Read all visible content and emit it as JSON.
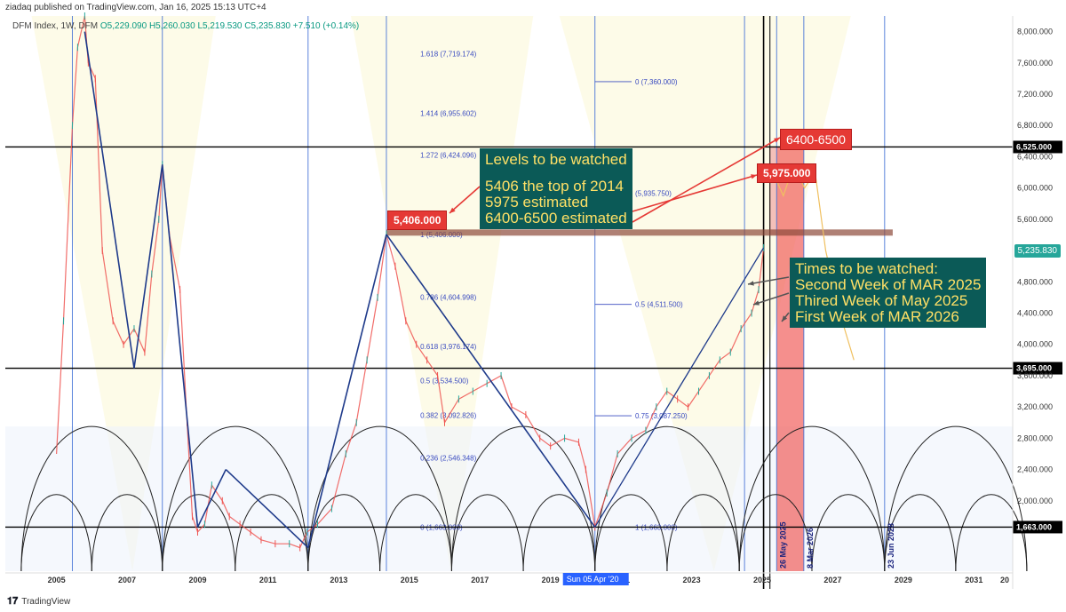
{
  "header": {
    "published": "ziadaq published on TradingView.com, Jan 16, 2025 15:13 UTC+4",
    "symbol": "DFM Index, 1W, DFM",
    "ohlc": "O5,229.090  H5,260.030  L5,219.530  C5,235.830  +7.510 (+0.14%)"
  },
  "footer": {
    "brand": "TradingView"
  },
  "callouts": {
    "levels": [
      "Levels to be watched",
      "",
      "5406 the top of 2014",
      "5975 estimated",
      "6400-6500 estimated"
    ],
    "times": [
      "Times to be watched:",
      "Second Week of MAR 2025",
      "Thired Week of May 2025",
      "First Week of MAR 2026"
    ]
  },
  "labels": {
    "top2014": "5,406.000",
    "estimated": "5,975.000",
    "target": "6400-6500",
    "current_price": "5,235.830",
    "x_marker": "Sun 05 Apr '20",
    "date_may25": "26 May 2025",
    "date_mar26": "8 Mar 2026",
    "date_jun28": "23 Jun 2028"
  },
  "colors": {
    "up": "#26a69a",
    "down": "#ef5350",
    "trend": "#1e3a8a",
    "fib": "#3b4cc0",
    "callout_bg": "#0b5a57",
    "callout_text": "#ffe066",
    "red": "#e53935"
  },
  "chart_data": {
    "type": "line",
    "x_unit": "year",
    "ylim": [
      1100,
      8200
    ],
    "xlim": [
      2003.55,
      2032.1
    ],
    "x_ticks": [
      "2005",
      "2007",
      "2009",
      "2011",
      "2013",
      "2015",
      "2017",
      "2019",
      "2021",
      "2023",
      "2025",
      "2027",
      "2029",
      "2031",
      "20"
    ],
    "y_ticks": [
      "8,000.000",
      "7,600.000",
      "7,200.000",
      "6,800.000",
      "6,400.000",
      "6,000.000",
      "5,600.000",
      "4,800.000",
      "4,400.000",
      "4,000.000",
      "3,600.000",
      "3,200.000",
      "2,800.000",
      "2,400.000",
      "2,000.000"
    ],
    "horizontal_levels": [
      {
        "value": 6525,
        "label": "6,525.000"
      },
      {
        "value": 3695,
        "label": "3,695.000"
      },
      {
        "value": 1663,
        "label": "1,663.000"
      }
    ],
    "series": [
      {
        "name": "DFM Index",
        "x": [
          2005.0,
          2005.2,
          2005.45,
          2005.6,
          2005.8,
          2005.9,
          2006.1,
          2006.3,
          2006.6,
          2006.9,
          2007.2,
          2007.5,
          2007.7,
          2007.9,
          2008.0,
          2008.2,
          2008.5,
          2008.7,
          2008.85,
          2009.0,
          2009.2,
          2009.4,
          2009.7,
          2009.9,
          2010.2,
          2010.5,
          2010.8,
          2011.2,
          2011.6,
          2011.9,
          2012.1,
          2012.4,
          2012.8,
          2013.2,
          2013.5,
          2013.8,
          2014.1,
          2014.35,
          2014.6,
          2014.9,
          2015.2,
          2015.5,
          2015.8,
          2016.0,
          2016.4,
          2016.8,
          2017.2,
          2017.6,
          2017.9,
          2018.3,
          2018.7,
          2019.0,
          2019.4,
          2019.8,
          2020.0,
          2020.26,
          2020.6,
          2020.9,
          2021.3,
          2021.7,
          2022.0,
          2022.3,
          2022.6,
          2022.9,
          2023.2,
          2023.5,
          2023.8,
          2024.1,
          2024.4,
          2024.7,
          2024.9,
          2025.04
        ],
        "y": [
          2600,
          4300,
          6800,
          7800,
          8200,
          7600,
          7400,
          5200,
          4300,
          4000,
          4200,
          3900,
          4900,
          5600,
          6300,
          5400,
          4700,
          3000,
          1800,
          1600,
          1700,
          2200,
          2000,
          1800,
          1700,
          1600,
          1500,
          1450,
          1450,
          1400,
          1600,
          1700,
          1900,
          2600,
          3000,
          3800,
          4600,
          5406,
          5000,
          4300,
          4000,
          3800,
          3600,
          3000,
          3300,
          3400,
          3500,
          3600,
          3200,
          3100,
          2800,
          2700,
          2800,
          2750,
          2400,
          1663,
          2100,
          2600,
          2800,
          2900,
          3200,
          3400,
          3300,
          3200,
          3400,
          3600,
          3800,
          3900,
          4200,
          4400,
          4700,
          5236
        ]
      }
    ],
    "fib_retracement_2014": [
      {
        "ratio": "1.618",
        "value": 7719.174
      },
      {
        "ratio": "1.414",
        "value": 6955.602
      },
      {
        "ratio": "1.272",
        "value": 6424.096
      },
      {
        "ratio": "1",
        "value": 5406.0
      },
      {
        "ratio": "0.786",
        "value": 4604.998
      },
      {
        "ratio": "0.618",
        "value": 3976.174
      },
      {
        "ratio": "0.5",
        "value": 3534.5
      },
      {
        "ratio": "0.382",
        "value": 3092.826
      },
      {
        "ratio": "0.236",
        "value": 2546.348
      },
      {
        "ratio": "0",
        "value": 1663.0
      }
    ],
    "fib_retracement_2020": [
      {
        "ratio": "0",
        "value": 7360.0
      },
      {
        "ratio": "",
        "value": 5935.75
      },
      {
        "ratio": "0.5",
        "value": 4511.5
      },
      {
        "ratio": "0.75",
        "value": 3087.25
      },
      {
        "ratio": "1",
        "value": 1663.0
      }
    ]
  }
}
